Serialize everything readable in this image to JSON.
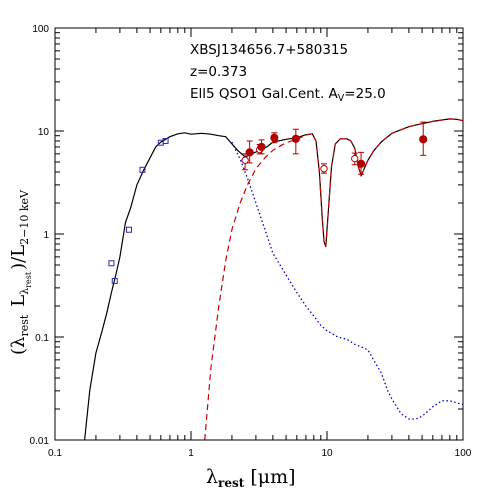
{
  "chart_data": {
    "type": "scatter",
    "xlabel": "λrest [μm]",
    "xlabel_parts": {
      "symbol": "λ",
      "sub": "rest",
      "unit": "[μm]"
    },
    "ylabel": "(λrest Lλrest)/L2−10 keV",
    "ylabel_parts": {
      "open": "(",
      "lam": "λ",
      "lam_sub": "rest",
      "L": "L",
      "L_sub_lam": "λ",
      "L_sub_sub": "rest",
      "close": ")/L",
      "den_sub": "2−10 keV"
    },
    "xscale": "log",
    "yscale": "log",
    "xlim": [
      0.1,
      100
    ],
    "ylim": [
      0.01,
      100
    ],
    "x_tick_labels": [
      "0.1",
      "1",
      "10",
      "100"
    ],
    "y_tick_labels": [
      "0.01",
      "0.1",
      "1",
      "10",
      "100"
    ],
    "annotations": {
      "source": "XBSJ134656.7+580315",
      "redshift": "z=0.373",
      "model_main": "Ell5 QSO1 Gal.Cent. A",
      "model_sub": "V",
      "model_val": "=25.0"
    },
    "colors": {
      "total": "#000000",
      "galaxy": "#0000cc",
      "agn": "#cc0000",
      "markers_red": "#b00000",
      "markers_blue": "#2a2ab0"
    },
    "series": [
      {
        "style": "solid-black",
        "x": [
          0.165,
          0.18,
          0.2,
          0.22,
          0.24,
          0.26,
          0.28,
          0.3,
          0.33,
          0.36,
          0.4,
          0.45,
          0.5,
          0.55,
          0.6,
          0.65,
          0.7,
          0.8,
          0.9,
          1.0,
          1.2,
          1.4,
          1.6,
          1.8,
          2.0,
          2.2,
          2.5,
          2.8,
          3.2,
          3.6,
          4,
          5,
          6,
          7,
          7.8,
          8.3,
          8.8,
          9.2,
          9.5,
          9.8,
          10.2,
          10.8,
          11.5,
          12.5,
          14,
          15,
          16,
          17,
          17.8,
          18.5,
          20,
          22,
          25,
          30,
          40,
          50,
          60,
          70,
          80,
          90,
          100
        ],
        "y": [
          0.01,
          0.03,
          0.07,
          0.11,
          0.17,
          0.27,
          0.4,
          0.6,
          1.3,
          1.8,
          3.0,
          4.2,
          5.5,
          7.0,
          7.8,
          8.3,
          8.8,
          9.4,
          9.6,
          9.3,
          9.5,
          9.3,
          9.0,
          8.8,
          7.5,
          6.5,
          5.6,
          6.0,
          6.5,
          7.0,
          7.8,
          8.3,
          8.6,
          9.2,
          9.4,
          8.0,
          4.0,
          1.5,
          0.85,
          0.75,
          1.6,
          4.5,
          7.5,
          8.4,
          8.4,
          8.0,
          6.8,
          4.5,
          3.7,
          4.1,
          5.2,
          6.4,
          7.8,
          9.5,
          11.0,
          11.8,
          12.4,
          12.8,
          13.1,
          13.0,
          12.6
        ]
      },
      {
        "style": "dotted-blue",
        "x": [
          2.0,
          2.3,
          2.6,
          3.0,
          3.5,
          4,
          5,
          6,
          7,
          8,
          9,
          10,
          12,
          14,
          16,
          18,
          20,
          22,
          25,
          28,
          30,
          35,
          40,
          45,
          50,
          60,
          70,
          80,
          100
        ],
        "y": [
          7.8,
          5.3,
          3.5,
          2.0,
          1.1,
          0.65,
          0.4,
          0.27,
          0.2,
          0.16,
          0.13,
          0.115,
          0.1,
          0.095,
          0.085,
          0.08,
          0.075,
          0.06,
          0.045,
          0.03,
          0.025,
          0.018,
          0.016,
          0.016,
          0.017,
          0.021,
          0.024,
          0.024,
          0.022
        ]
      },
      {
        "style": "dashed-red",
        "x": [
          1.26,
          1.4,
          1.6,
          1.8,
          2.0,
          2.3,
          2.6,
          3,
          3.5,
          4,
          5,
          6,
          7,
          7.8,
          8.3,
          8.8,
          9.2,
          9.5,
          9.8,
          10.2,
          10.8,
          11.5,
          12.5,
          14,
          15,
          16,
          17,
          17.8,
          18.5,
          20,
          22,
          25,
          30,
          40,
          50,
          60,
          70,
          80,
          90,
          100
        ],
        "y": [
          0.01,
          0.05,
          0.2,
          0.55,
          1.1,
          2.0,
          3.0,
          4.3,
          5.5,
          6.5,
          7.7,
          8.3,
          9.1,
          9.4,
          8.0,
          4.0,
          1.5,
          0.85,
          0.75,
          1.6,
          4.5,
          7.5,
          8.4,
          8.4,
          8.0,
          6.8,
          4.5,
          3.7,
          4.1,
          5.2,
          6.4,
          7.8,
          9.5,
          11.0,
          11.8,
          12.4,
          12.8,
          13.1,
          13.0,
          12.6
        ]
      }
    ],
    "points_red_filled": [
      {
        "x": 2.7,
        "y": 6.2,
        "ylo": 4.9,
        "yhi": 8.0
      },
      {
        "x": 3.3,
        "y": 7.0,
        "ylo": 6.0,
        "yhi": 8.2
      },
      {
        "x": 4.1,
        "y": 8.6,
        "ylo": 7.7,
        "yhi": 9.6
      },
      {
        "x": 5.9,
        "y": 8.4,
        "ylo": 6.0,
        "yhi": 10.4
      },
      {
        "x": 17.8,
        "y": 4.8,
        "ylo": 3.8,
        "yhi": 6.2
      },
      {
        "x": 51,
        "y": 8.3,
        "ylo": 5.8,
        "yhi": 12.2
      }
    ],
    "points_red_open": [
      {
        "x": 2.5,
        "y": 5.2,
        "ylo": 4.2,
        "yhi": 6.0
      },
      {
        "x": 3.2,
        "y": 6.6,
        "ylo": 6.0,
        "yhi": 7.4
      },
      {
        "x": 9.5,
        "y": 4.3,
        "ylo": 3.9,
        "yhi": 4.8
      },
      {
        "x": 16.0,
        "y": 5.4,
        "ylo": 4.7,
        "yhi": 6.1
      }
    ],
    "points_blue_open": [
      {
        "x": 0.26,
        "y": 0.52
      },
      {
        "x": 0.275,
        "y": 0.35
      },
      {
        "x": 0.35,
        "y": 1.1
      },
      {
        "x": 0.44,
        "y": 4.2
      },
      {
        "x": 0.6,
        "y": 7.7
      },
      {
        "x": 0.65,
        "y": 8.0
      }
    ]
  }
}
